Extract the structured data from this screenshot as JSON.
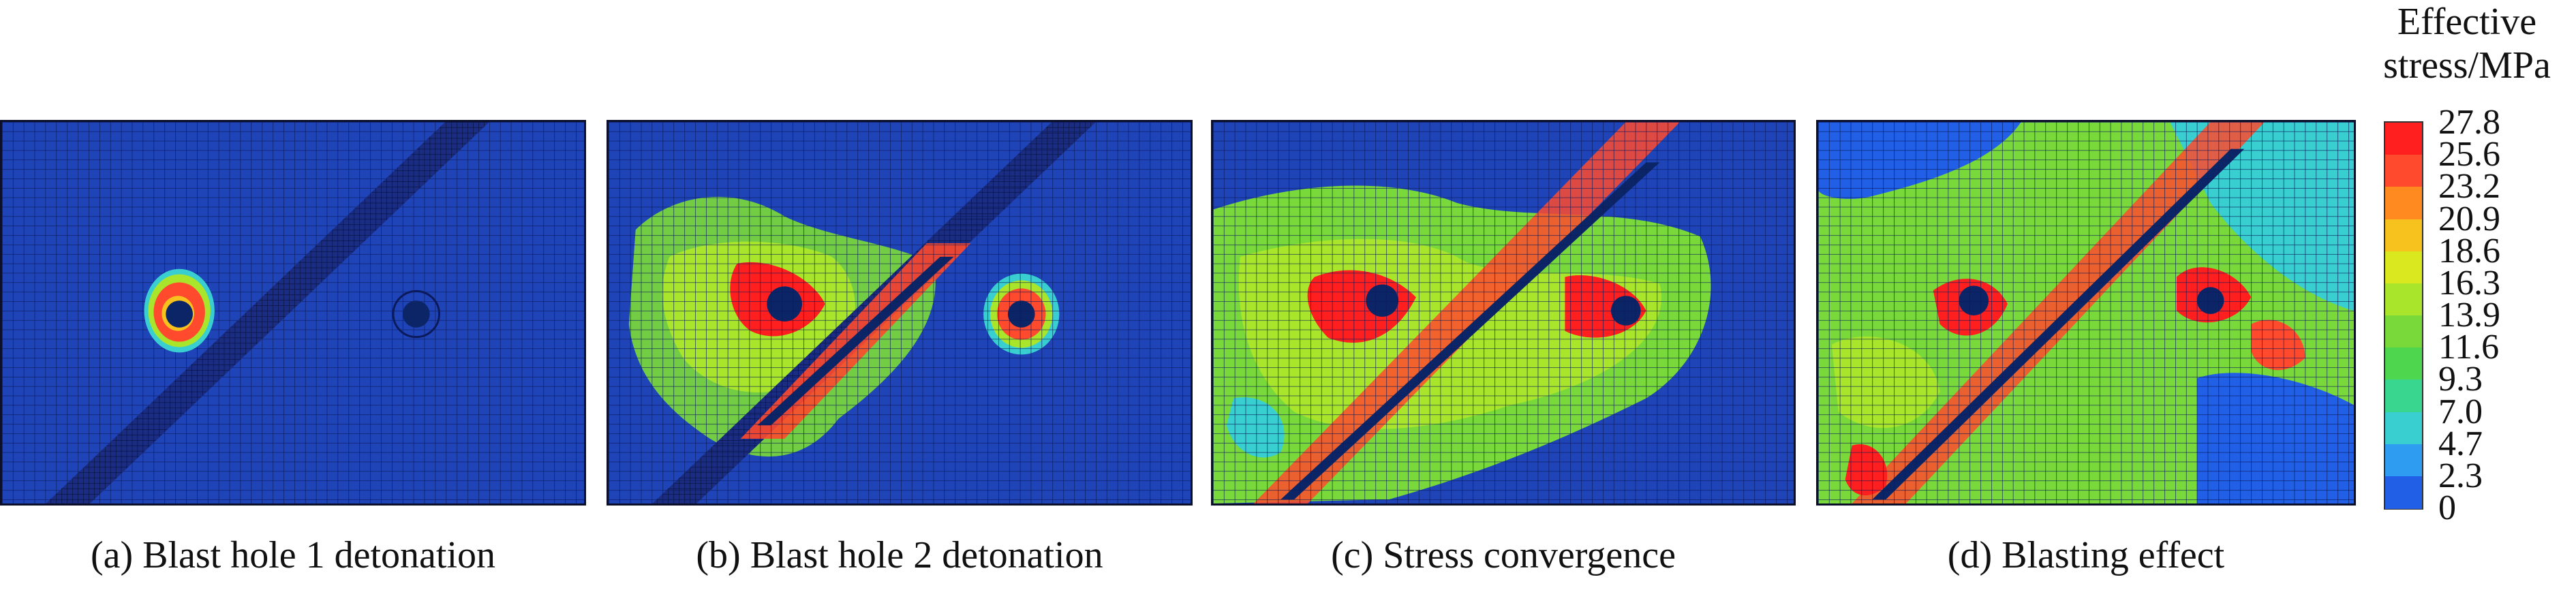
{
  "panels": [
    {
      "caption": "(a) Blast hole 1 detonation",
      "stage": "blast-hole-1"
    },
    {
      "caption": "(b) Blast hole 2 detonation",
      "stage": "blast-hole-2"
    },
    {
      "caption": "(c) Stress convergence",
      "stage": "stress-convergence"
    },
    {
      "caption": "(d) Blasting effect",
      "stage": "blasting-effect"
    }
  ],
  "legend": {
    "title_line1": "Effective",
    "title_line2": "stress/MPa",
    "levels": [
      {
        "label": "27.8",
        "color": "#ff1f1f"
      },
      {
        "label": "25.6",
        "color": "#ff4a2e"
      },
      {
        "label": "23.2",
        "color": "#ff8a1f"
      },
      {
        "label": "20.9",
        "color": "#f7c21e"
      },
      {
        "label": "18.6",
        "color": "#d9e81f"
      },
      {
        "label": "16.3",
        "color": "#a9e62b"
      },
      {
        "label": "13.9",
        "color": "#7ad93a"
      },
      {
        "label": "11.6",
        "color": "#4ed64f"
      },
      {
        "label": "9.3",
        "color": "#39d68f"
      },
      {
        "label": "7.0",
        "color": "#39cfd0"
      },
      {
        "label": "4.7",
        "color": "#2e9cf0"
      },
      {
        "label": "2.3",
        "color": "#205fe6"
      },
      {
        "label": "0",
        "color": "#1233d6"
      }
    ]
  },
  "colors": {
    "mesh_base": "#1f44b8",
    "mesh_line": "#0b1a5a",
    "hole": "#0b2566",
    "fault": "#1b2a6b"
  }
}
